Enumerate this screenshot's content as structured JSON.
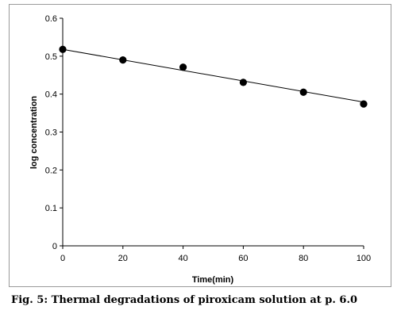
{
  "chart_data": {
    "type": "scatter",
    "xlabel": "Time(min)",
    "ylabel": "log concentration",
    "xlim": [
      0,
      100
    ],
    "ylim": [
      0,
      0.6
    ],
    "x_ticks": [
      "0",
      "20",
      "40",
      "60",
      "80",
      "100"
    ],
    "y_ticks": [
      "0",
      "0.1",
      "0.2",
      "0.3",
      "0.4",
      "0.5",
      "0.6"
    ],
    "grid": false,
    "series": [
      {
        "marker": "filled-circle",
        "color": "#000000",
        "x": [
          0,
          20,
          40,
          60,
          80,
          100
        ],
        "y": [
          0.518,
          0.49,
          0.471,
          0.431,
          0.405,
          0.374
        ]
      }
    ],
    "trendline": {
      "type": "linear",
      "color": "#000000",
      "from": [
        0,
        0.518
      ],
      "to": [
        100,
        0.379
      ]
    }
  },
  "caption": "Fig. 5: Thermal degradations of piroxicam solution at p. 6.0"
}
